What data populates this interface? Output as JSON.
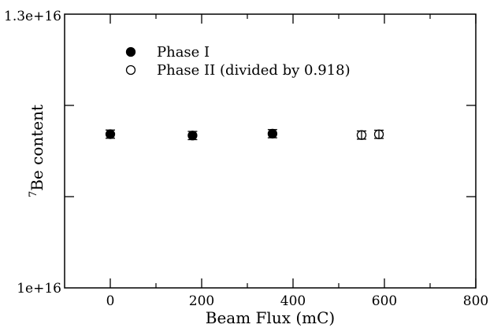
{
  "chart_data": {
    "type": "scatter",
    "title": "",
    "xlabel": "Beam Flux (mC)",
    "ylabel_superscript": "7",
    "ylabel": "Be content",
    "xlim": [
      -100,
      800
    ],
    "ylim": [
      1e+16,
      1.3e+16
    ],
    "x_ticks": [
      0,
      200,
      400,
      600,
      800
    ],
    "x_tick_labels": [
      "0",
      "200",
      "400",
      "600",
      "800"
    ],
    "y_ticks": [
      1e+16,
      1.3e+16
    ],
    "y_tick_labels": [
      "1e+16",
      "1.3e+16"
    ],
    "y_minor_ticks": [
      1.1e+16,
      1.2e+16
    ],
    "grid": false,
    "legend_position": "top-left",
    "series": [
      {
        "name": "Phase I",
        "marker": "filled-circle",
        "points": [
          {
            "x": 0,
            "y": 1.1685e+16,
            "err": 45000000000000.0
          },
          {
            "x": 180,
            "y": 1.167e+16,
            "err": 45000000000000.0
          },
          {
            "x": 355,
            "y": 1.169e+16,
            "err": 45000000000000.0
          }
        ]
      },
      {
        "name": "Phase II (divided by 0.918)",
        "marker": "open-circle",
        "points": [
          {
            "x": 550,
            "y": 1.1675e+16,
            "err": 45000000000000.0
          },
          {
            "x": 588,
            "y": 1.1683e+16,
            "err": 45000000000000.0
          }
        ]
      }
    ]
  }
}
